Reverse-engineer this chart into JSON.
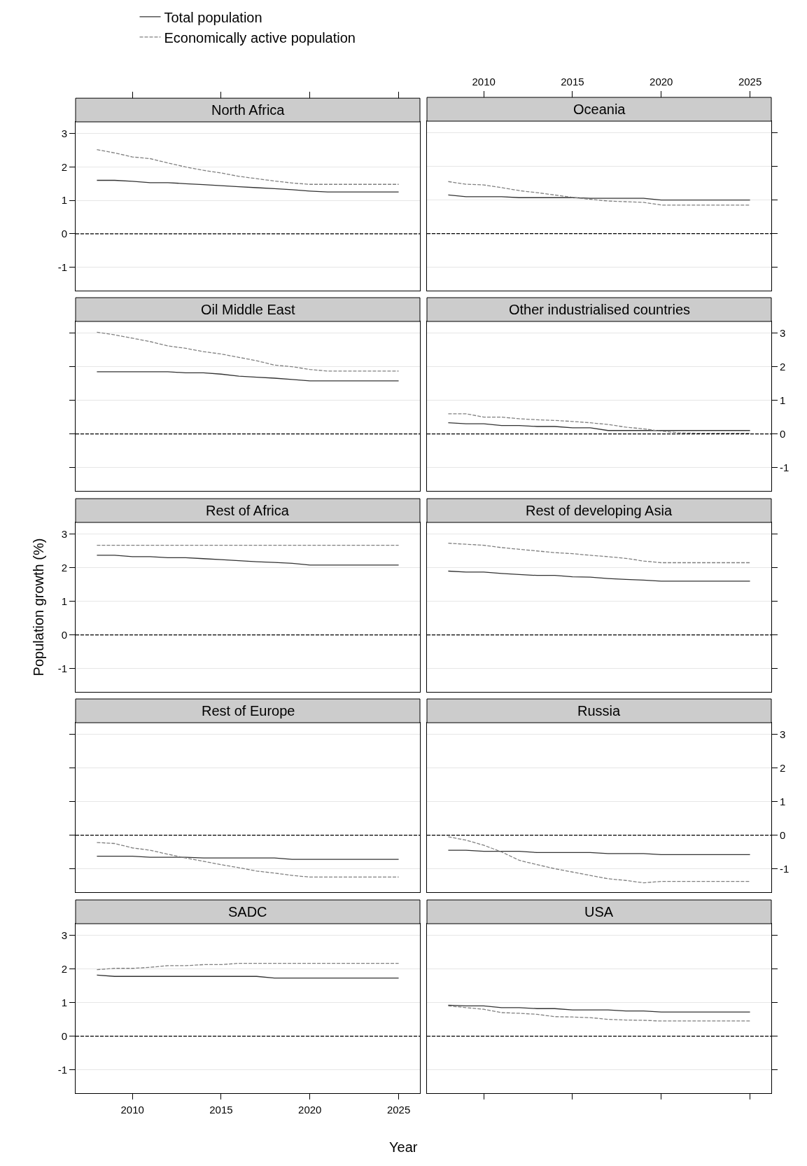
{
  "chart_data": [
    {
      "type": "line",
      "title": "North Africa",
      "ylabel": null,
      "x": [
        2008,
        2009,
        2010,
        2011,
        2012,
        2013,
        2014,
        2015,
        2016,
        2017,
        2018,
        2019,
        2020,
        2021,
        2022,
        2023,
        2024,
        2025
      ],
      "xlim": [
        2006.8,
        2026.2
      ],
      "xticks": [
        2010,
        2015,
        2020,
        2025
      ],
      "ylim": [
        -1.7,
        3.35
      ],
      "yticks": [
        -1,
        0,
        1,
        2,
        3
      ],
      "grid": "y",
      "tick_labels": "y",
      "legend": "top",
      "ref_lines": [
        {
          "axis": "y",
          "value": 0,
          "color": "#000000",
          "line_style": "dashed"
        }
      ],
      "series": [
        {
          "name": "Total population",
          "color": "#333333",
          "line_style": "solid",
          "values": [
            1.6,
            1.6,
            1.57,
            1.53,
            1.53,
            1.5,
            1.47,
            1.44,
            1.41,
            1.38,
            1.35,
            1.32,
            1.28,
            1.25,
            1.25,
            1.25,
            1.25,
            1.25
          ]
        },
        {
          "name": "Economically active population",
          "color": "#808080",
          "line_style": "dashed",
          "values": [
            2.52,
            2.42,
            2.3,
            2.25,
            2.12,
            2.0,
            1.9,
            1.82,
            1.72,
            1.65,
            1.58,
            1.52,
            1.48,
            1.48,
            1.48,
            1.48,
            1.48,
            1.48
          ]
        }
      ]
    },
    {
      "type": "line",
      "title": "Oceania",
      "x": [
        2008,
        2009,
        2010,
        2011,
        2012,
        2013,
        2014,
        2015,
        2016,
        2017,
        2018,
        2019,
        2020,
        2021,
        2022,
        2023,
        2024,
        2025
      ],
      "xlim": [
        2006.8,
        2026.2
      ],
      "xticks": [
        2010,
        2015,
        2020,
        2025
      ],
      "ylim": [
        -1.7,
        3.35
      ],
      "yticks": [
        -1,
        0,
        1,
        2,
        3
      ],
      "grid": "y",
      "tick_labels": "x",
      "ref_lines": [
        {
          "axis": "y",
          "value": 0,
          "color": "#000000",
          "line_style": "dashed"
        }
      ],
      "series": [
        {
          "color": "#333333",
          "line_style": "solid",
          "values": [
            1.15,
            1.1,
            1.1,
            1.1,
            1.07,
            1.07,
            1.07,
            1.07,
            1.05,
            1.05,
            1.05,
            1.05,
            1.0,
            1.0,
            1.0,
            1.0,
            1.0,
            1.0
          ]
        },
        {
          "color": "#808080",
          "line_style": "dashed",
          "values": [
            1.55,
            1.47,
            1.45,
            1.37,
            1.28,
            1.22,
            1.15,
            1.08,
            1.02,
            0.97,
            0.95,
            0.93,
            0.85,
            0.85,
            0.85,
            0.85,
            0.85,
            0.85
          ]
        }
      ]
    },
    {
      "type": "line",
      "title": "Oil Middle East",
      "x": [
        2008,
        2009,
        2010,
        2011,
        2012,
        2013,
        2014,
        2015,
        2016,
        2017,
        2018,
        2019,
        2020,
        2021,
        2022,
        2023,
        2024,
        2025
      ],
      "xlim": [
        2006.8,
        2026.2
      ],
      "xticks": [
        2010,
        2015,
        2020,
        2025
      ],
      "ylim": [
        -1.7,
        3.35
      ],
      "yticks": [
        -1,
        0,
        1,
        2,
        3
      ],
      "grid": "y",
      "tick_labels": false,
      "ref_lines": [
        {
          "axis": "y",
          "value": 0,
          "color": "#000000",
          "line_style": "dashed"
        }
      ],
      "series": [
        {
          "color": "#333333",
          "line_style": "solid",
          "values": [
            1.85,
            1.85,
            1.85,
            1.85,
            1.85,
            1.82,
            1.82,
            1.78,
            1.72,
            1.69,
            1.66,
            1.62,
            1.58,
            1.58,
            1.58,
            1.58,
            1.58,
            1.58
          ]
        },
        {
          "color": "#808080",
          "line_style": "dashed",
          "values": [
            3.03,
            2.95,
            2.85,
            2.75,
            2.62,
            2.55,
            2.45,
            2.38,
            2.28,
            2.18,
            2.05,
            2.0,
            1.92,
            1.87,
            1.87,
            1.87,
            1.87,
            1.87
          ]
        }
      ]
    },
    {
      "type": "line",
      "title": "Other industrialised countries",
      "x": [
        2008,
        2009,
        2010,
        2011,
        2012,
        2013,
        2014,
        2015,
        2016,
        2017,
        2018,
        2019,
        2020,
        2021,
        2022,
        2023,
        2024,
        2025
      ],
      "xlim": [
        2006.8,
        2026.2
      ],
      "xticks": [
        2010,
        2015,
        2020,
        2025
      ],
      "ylim": [
        -1.7,
        3.35
      ],
      "yticks": [
        -1,
        0,
        1,
        2,
        3
      ],
      "grid": "y",
      "tick_labels": "y",
      "ref_lines": [
        {
          "axis": "y",
          "value": 0,
          "color": "#000000",
          "line_style": "dashed"
        }
      ],
      "series": [
        {
          "color": "#333333",
          "line_style": "solid",
          "values": [
            0.33,
            0.3,
            0.3,
            0.25,
            0.25,
            0.22,
            0.22,
            0.18,
            0.18,
            0.1,
            0.1,
            0.1,
            0.1,
            0.1,
            0.1,
            0.1,
            0.1,
            0.1
          ]
        },
        {
          "color": "#808080",
          "line_style": "dashed",
          "values": [
            0.6,
            0.6,
            0.5,
            0.5,
            0.45,
            0.42,
            0.4,
            0.37,
            0.33,
            0.28,
            0.2,
            0.15,
            0.08,
            0.03,
            0.02,
            0.02,
            0.02,
            0.02
          ]
        }
      ]
    },
    {
      "type": "line",
      "title": "Rest of Africa",
      "ylabel": "Population growth (%)",
      "x": [
        2008,
        2009,
        2010,
        2011,
        2012,
        2013,
        2014,
        2015,
        2016,
        2017,
        2018,
        2019,
        2020,
        2021,
        2022,
        2023,
        2024,
        2025
      ],
      "xlim": [
        2006.8,
        2026.2
      ],
      "xticks": [
        2010,
        2015,
        2020,
        2025
      ],
      "ylim": [
        -1.7,
        3.35
      ],
      "yticks": [
        -1,
        0,
        1,
        2,
        3
      ],
      "grid": "y",
      "tick_labels": "y",
      "ref_lines": [
        {
          "axis": "y",
          "value": 0,
          "color": "#000000",
          "line_style": "dashed"
        }
      ],
      "series": [
        {
          "color": "#333333",
          "line_style": "solid",
          "values": [
            2.37,
            2.37,
            2.33,
            2.33,
            2.3,
            2.3,
            2.27,
            2.24,
            2.21,
            2.18,
            2.16,
            2.13,
            2.08,
            2.08,
            2.08,
            2.08,
            2.08,
            2.08
          ]
        },
        {
          "color": "#808080",
          "line_style": "dashed",
          "values": [
            2.67,
            2.67,
            2.67,
            2.67,
            2.67,
            2.67,
            2.67,
            2.67,
            2.67,
            2.67,
            2.67,
            2.67,
            2.67,
            2.67,
            2.67,
            2.67,
            2.67,
            2.67
          ]
        }
      ]
    },
    {
      "type": "line",
      "title": "Rest of developing Asia",
      "x": [
        2008,
        2009,
        2010,
        2011,
        2012,
        2013,
        2014,
        2015,
        2016,
        2017,
        2018,
        2019,
        2020,
        2021,
        2022,
        2023,
        2024,
        2025
      ],
      "xlim": [
        2006.8,
        2026.2
      ],
      "xticks": [
        2010,
        2015,
        2020,
        2025
      ],
      "ylim": [
        -1.7,
        3.35
      ],
      "yticks": [
        -1,
        0,
        1,
        2,
        3
      ],
      "grid": "y",
      "tick_labels": false,
      "ref_lines": [
        {
          "axis": "y",
          "value": 0,
          "color": "#000000",
          "line_style": "dashed"
        }
      ],
      "series": [
        {
          "color": "#333333",
          "line_style": "solid",
          "values": [
            1.9,
            1.87,
            1.87,
            1.83,
            1.8,
            1.77,
            1.77,
            1.73,
            1.72,
            1.68,
            1.65,
            1.63,
            1.6,
            1.6,
            1.6,
            1.6,
            1.6,
            1.6
          ]
        },
        {
          "color": "#808080",
          "line_style": "dashed",
          "values": [
            2.73,
            2.7,
            2.67,
            2.6,
            2.55,
            2.5,
            2.45,
            2.42,
            2.37,
            2.33,
            2.28,
            2.2,
            2.15,
            2.15,
            2.15,
            2.15,
            2.15,
            2.15
          ]
        }
      ]
    },
    {
      "type": "line",
      "title": "Rest of Europe",
      "x": [
        2008,
        2009,
        2010,
        2011,
        2012,
        2013,
        2014,
        2015,
        2016,
        2017,
        2018,
        2019,
        2020,
        2021,
        2022,
        2023,
        2024,
        2025
      ],
      "xlim": [
        2006.8,
        2026.2
      ],
      "xticks": [
        2010,
        2015,
        2020,
        2025
      ],
      "ylim": [
        -1.7,
        3.35
      ],
      "yticks": [
        -1,
        0,
        1,
        2,
        3
      ],
      "grid": "y",
      "tick_labels": false,
      "ref_lines": [
        {
          "axis": "y",
          "value": 0,
          "color": "#000000",
          "line_style": "dashed"
        }
      ],
      "series": [
        {
          "color": "#333333",
          "line_style": "solid",
          "values": [
            -0.63,
            -0.63,
            -0.63,
            -0.66,
            -0.66,
            -0.66,
            -0.68,
            -0.68,
            -0.68,
            -0.68,
            -0.68,
            -0.72,
            -0.72,
            -0.72,
            -0.72,
            -0.72,
            -0.72,
            -0.72
          ]
        },
        {
          "color": "#808080",
          "line_style": "dashed",
          "values": [
            -0.22,
            -0.25,
            -0.38,
            -0.45,
            -0.57,
            -0.68,
            -0.78,
            -0.88,
            -0.97,
            -1.07,
            -1.13,
            -1.2,
            -1.25,
            -1.25,
            -1.25,
            -1.25,
            -1.25,
            -1.25
          ]
        }
      ]
    },
    {
      "type": "line",
      "title": "Russia",
      "x": [
        2008,
        2009,
        2010,
        2011,
        2012,
        2013,
        2014,
        2015,
        2016,
        2017,
        2018,
        2019,
        2020,
        2021,
        2022,
        2023,
        2024,
        2025
      ],
      "xlim": [
        2006.8,
        2026.2
      ],
      "xticks": [
        2010,
        2015,
        2020,
        2025
      ],
      "ylim": [
        -1.7,
        3.35
      ],
      "yticks": [
        -1,
        0,
        1,
        2,
        3
      ],
      "grid": "y",
      "tick_labels": "y",
      "ref_lines": [
        {
          "axis": "y",
          "value": 0,
          "color": "#000000",
          "line_style": "dashed"
        }
      ],
      "series": [
        {
          "color": "#333333",
          "line_style": "solid",
          "values": [
            -0.45,
            -0.45,
            -0.48,
            -0.48,
            -0.48,
            -0.52,
            -0.52,
            -0.52,
            -0.52,
            -0.55,
            -0.55,
            -0.55,
            -0.58,
            -0.58,
            -0.58,
            -0.58,
            -0.58,
            -0.58
          ]
        },
        {
          "color": "#808080",
          "line_style": "dashed",
          "values": [
            -0.05,
            -0.15,
            -0.3,
            -0.5,
            -0.75,
            -0.88,
            -1.0,
            -1.1,
            -1.2,
            -1.3,
            -1.35,
            -1.42,
            -1.38,
            -1.38,
            -1.38,
            -1.38,
            -1.38,
            -1.38
          ]
        }
      ]
    },
    {
      "type": "line",
      "title": "SADC",
      "xlabel": "Year",
      "x": [
        2008,
        2009,
        2010,
        2011,
        2012,
        2013,
        2014,
        2015,
        2016,
        2017,
        2018,
        2019,
        2020,
        2021,
        2022,
        2023,
        2024,
        2025
      ],
      "xlim": [
        2006.8,
        2026.2
      ],
      "xticks": [
        2010,
        2015,
        2020,
        2025
      ],
      "ylim": [
        -1.7,
        3.35
      ],
      "yticks": [
        -1,
        0,
        1,
        2,
        3
      ],
      "grid": "y",
      "ref_lines": [
        {
          "axis": "y",
          "value": 0,
          "color": "#000000",
          "line_style": "dashed"
        }
      ],
      "series": [
        {
          "color": "#333333",
          "line_style": "solid",
          "values": [
            1.82,
            1.78,
            1.78,
            1.78,
            1.78,
            1.78,
            1.78,
            1.78,
            1.78,
            1.78,
            1.73,
            1.73,
            1.73,
            1.73,
            1.73,
            1.73,
            1.73,
            1.73
          ]
        },
        {
          "color": "#808080",
          "line_style": "dashed",
          "values": [
            1.98,
            2.02,
            2.02,
            2.05,
            2.1,
            2.1,
            2.13,
            2.13,
            2.17,
            2.17,
            2.17,
            2.17,
            2.17,
            2.17,
            2.17,
            2.17,
            2.17,
            2.17
          ]
        }
      ]
    },
    {
      "type": "line",
      "title": "USA",
      "x": [
        2008,
        2009,
        2010,
        2011,
        2012,
        2013,
        2014,
        2015,
        2016,
        2017,
        2018,
        2019,
        2020,
        2021,
        2022,
        2023,
        2024,
        2025
      ],
      "xlim": [
        2006.8,
        2026.2
      ],
      "xticks": [
        2010,
        2015,
        2020,
        2025
      ],
      "ylim": [
        -1.7,
        3.35
      ],
      "yticks": [
        -1,
        0,
        1,
        2,
        3
      ],
      "grid": "y",
      "tick_labels": false,
      "ref_lines": [
        {
          "axis": "y",
          "value": 0,
          "color": "#000000",
          "line_style": "dashed"
        }
      ],
      "series": [
        {
          "color": "#333333",
          "line_style": "solid",
          "values": [
            0.92,
            0.9,
            0.9,
            0.85,
            0.85,
            0.82,
            0.82,
            0.78,
            0.78,
            0.78,
            0.75,
            0.75,
            0.72,
            0.72,
            0.72,
            0.72,
            0.72,
            0.72
          ]
        },
        {
          "color": "#808080",
          "line_style": "dashed",
          "values": [
            0.9,
            0.85,
            0.8,
            0.7,
            0.68,
            0.65,
            0.58,
            0.57,
            0.55,
            0.5,
            0.48,
            0.47,
            0.45,
            0.45,
            0.45,
            0.45,
            0.45,
            0.45
          ]
        }
      ]
    }
  ]
}
